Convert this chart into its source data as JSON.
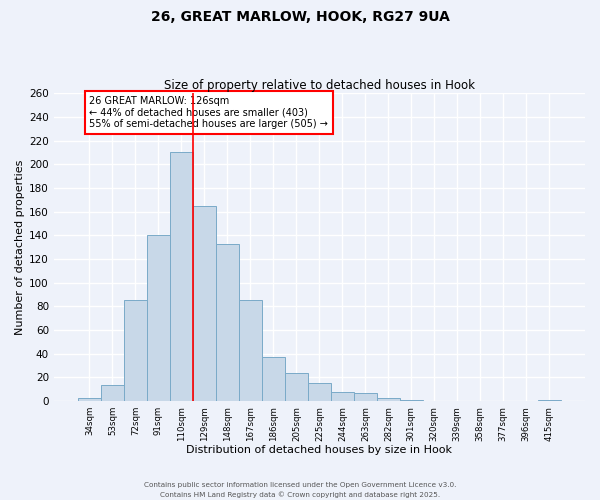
{
  "title": "26, GREAT MARLOW, HOOK, RG27 9UA",
  "subtitle": "Size of property relative to detached houses in Hook",
  "xlabel": "Distribution of detached houses by size in Hook",
  "ylabel": "Number of detached properties",
  "bar_labels": [
    "34sqm",
    "53sqm",
    "72sqm",
    "91sqm",
    "110sqm",
    "129sqm",
    "148sqm",
    "167sqm",
    "186sqm",
    "205sqm",
    "225sqm",
    "244sqm",
    "263sqm",
    "282sqm",
    "301sqm",
    "320sqm",
    "339sqm",
    "358sqm",
    "377sqm",
    "396sqm",
    "415sqm"
  ],
  "bar_values": [
    3,
    14,
    85,
    140,
    210,
    165,
    133,
    85,
    37,
    24,
    15,
    8,
    7,
    3,
    1,
    0,
    0,
    0,
    0,
    0,
    1
  ],
  "bar_color": "#c8d8e8",
  "bar_edge_color": "#7aaac8",
  "ylim": [
    0,
    260
  ],
  "yticks": [
    0,
    20,
    40,
    60,
    80,
    100,
    120,
    140,
    160,
    180,
    200,
    220,
    240,
    260
  ],
  "vline_index": 5,
  "vline_color": "red",
  "annotation_line1": "26 GREAT MARLOW: 126sqm",
  "annotation_line2": "← 44% of detached houses are smaller (403)",
  "annotation_line3": "55% of semi-detached houses are larger (505) →",
  "annotation_box_color": "white",
  "annotation_box_edge": "red",
  "background_color": "#eef2fa",
  "grid_color": "white",
  "footer1": "Contains HM Land Registry data © Crown copyright and database right 2025.",
  "footer2": "Contains public sector information licensed under the Open Government Licence v3.0."
}
